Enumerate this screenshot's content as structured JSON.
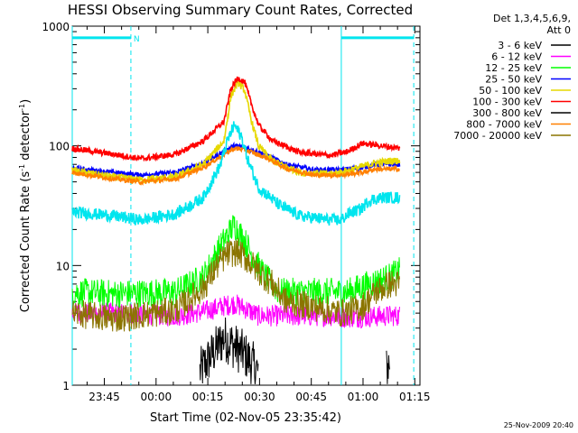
{
  "chart_data": {
    "type": "line",
    "title": "HESSI Observing Summary Count Rates, Corrected",
    "xlabel": "Start Time (02-Nov-05 23:35:42)",
    "ylabel_main": "Corrected Count Rate (s",
    "ylabel_sup1": "-1",
    "ylabel_mid": " detector",
    "ylabel_sup2": "-1",
    "ylabel_end": ")",
    "y_scale": "log",
    "ylim": [
      1,
      1000
    ],
    "xlim": [
      "23:35:42",
      "01:16:30"
    ],
    "x_tick_labels": [
      "23:45",
      "00:00",
      "00:15",
      "00:30",
      "00:45",
      "01:00",
      "01:15"
    ],
    "x_tick_minutes": [
      9.3,
      24.3,
      39.3,
      54.3,
      69.3,
      84.3,
      99.3
    ],
    "y_tick_labels": [
      "1",
      "10",
      "100",
      "1000"
    ],
    "y_tick_values": [
      1,
      10,
      100,
      1000
    ],
    "legend_header": [
      "Det 1,3,4,5,6,9,",
      "Att 0"
    ],
    "legend_position": "right, outside plot",
    "markers": {
      "night_bars": [
        [
          0,
          17
        ],
        [
          78,
          99
        ]
      ],
      "night_level": 800,
      "n_label": "N",
      "vertical_lines": [
        {
          "minute": 0,
          "style": "solid"
        },
        {
          "minute": 17,
          "style": "dashed"
        },
        {
          "minute": 78,
          "style": "solid"
        },
        {
          "minute": 99,
          "style": "dashed"
        }
      ],
      "color": "#00e5ee"
    },
    "series": [
      {
        "name": "3 - 6 keV",
        "color": "#000000",
        "noise": 0.2,
        "gaps": [
          [
            0,
            37
          ],
          [
            54,
            91
          ]
        ],
        "x": [
          37,
          44,
          50,
          54,
          91,
          92
        ],
        "y": [
          1.3,
          2.5,
          1.8,
          1.3,
          1.3,
          1.6
        ]
      },
      {
        "name": "6 - 12 keV",
        "color": "#ff00ff",
        "noise": 0.09,
        "x": [
          0,
          16,
          30,
          38,
          44,
          47,
          50,
          54,
          60,
          75,
          78,
          84,
          92,
          95
        ],
        "y": [
          4.0,
          4.0,
          3.8,
          4.1,
          4.6,
          4.8,
          4.4,
          3.8,
          3.8,
          3.8,
          3.7,
          3.7,
          3.8,
          3.8
        ]
      },
      {
        "name": "12 - 25 keV",
        "color": "#00ff00",
        "noise": 0.12,
        "x": [
          0,
          12,
          30,
          38,
          42,
          45,
          47,
          50,
          53,
          56,
          60,
          75,
          80,
          86,
          92,
          95
        ],
        "y": [
          6,
          5.8,
          6,
          8,
          13,
          18,
          22,
          16,
          11,
          8,
          6,
          6,
          6,
          7,
          8,
          9
        ]
      },
      {
        "name": "25 - 50 keV",
        "color": "#0000ff",
        "noise": 0.02,
        "x": [
          0,
          12,
          20,
          30,
          38,
          44,
          47,
          50,
          56,
          62,
          70,
          78,
          84,
          88,
          92,
          95
        ],
        "y": [
          65,
          60,
          57,
          60,
          72,
          90,
          100,
          97,
          85,
          70,
          63,
          63,
          66,
          70,
          70,
          70
        ]
      },
      {
        "name": "50 - 100 keV",
        "color": "#e6d800",
        "noise": 0.03,
        "x": [
          0,
          12,
          20,
          30,
          38,
          44,
          46,
          48,
          50,
          52,
          54,
          58,
          66,
          75,
          80,
          86,
          92,
          95
        ],
        "y": [
          62,
          55,
          52,
          55,
          70,
          110,
          260,
          340,
          290,
          160,
          100,
          75,
          60,
          58,
          62,
          70,
          75,
          75
        ]
      },
      {
        "name": "100 - 300 keV",
        "color": "#ff0000",
        "noise": 0.025,
        "x": [
          0,
          12,
          20,
          30,
          38,
          44,
          46,
          48,
          50,
          52,
          54,
          58,
          66,
          75,
          80,
          84,
          92,
          95
        ],
        "y": [
          95,
          85,
          78,
          85,
          110,
          160,
          300,
          370,
          340,
          220,
          150,
          110,
          88,
          83,
          90,
          105,
          98,
          95
        ]
      },
      {
        "name": "300 - 800 keV",
        "color": "#000000",
        "noise": 0,
        "x": [],
        "y": []
      },
      {
        "name": "800 - 7000 keV",
        "color": "#ff8000",
        "noise": 0.02,
        "x": [
          0,
          12,
          20,
          30,
          38,
          44,
          47,
          50,
          56,
          62,
          70,
          78,
          84,
          88,
          92,
          95
        ],
        "y": [
          60,
          53,
          50,
          53,
          66,
          85,
          95,
          93,
          80,
          65,
          57,
          57,
          60,
          64,
          64,
          64
        ]
      },
      {
        "name": "7000 - 20000 keV",
        "color": "#8b7500",
        "noise": 0.12,
        "x": [
          0,
          12,
          30,
          38,
          42,
          45,
          48,
          51,
          54,
          58,
          62,
          70,
          78,
          84,
          88,
          92,
          95
        ],
        "y": [
          4.0,
          3.6,
          4.2,
          6.5,
          10,
          12.5,
          13,
          11,
          9,
          7,
          5,
          4.5,
          4,
          4.5,
          6,
          7,
          7
        ]
      },
      {
        "name": "",
        "color": "#00e5ee",
        "noise": 0.05,
        "x": [
          0,
          12,
          20,
          30,
          38,
          43,
          45,
          47,
          49,
          51,
          54,
          60,
          66,
          75,
          78,
          80,
          84,
          86,
          90,
          95
        ],
        "y": [
          28,
          26,
          24,
          27,
          37,
          70,
          110,
          150,
          120,
          75,
          45,
          32,
          26,
          24,
          24,
          27,
          30,
          35,
          37,
          37
        ]
      }
    ]
  },
  "footer": {
    "timestamp": "25-Nov-2009 20:40"
  }
}
